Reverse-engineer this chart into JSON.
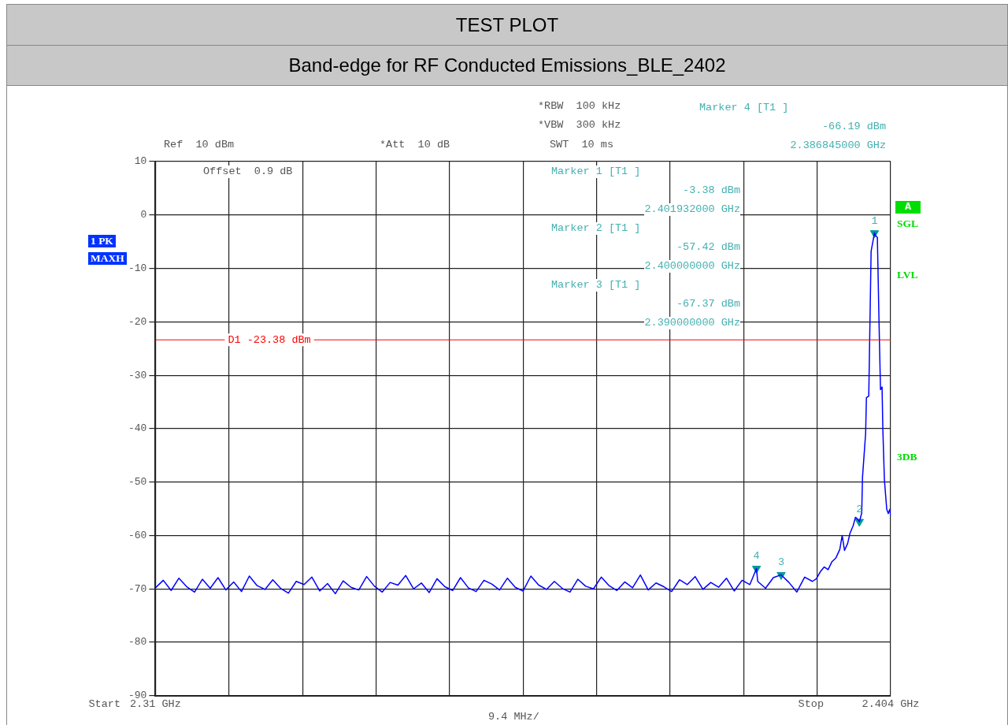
{
  "chart_data": {
    "type": "line",
    "title": "TEST   PLOT",
    "subtitle": "Band-edge for RF Conducted Emissions_BLE_2402",
    "xlim": [
      2.31,
      2.404
    ],
    "xticks": [
      {
        "value": 2.31,
        "label": "2.31 GHz"
      },
      {
        "value": 2.3194,
        "label": null
      },
      {
        "value": 2.3288,
        "label": null
      },
      {
        "value": 2.3382,
        "label": null
      },
      {
        "value": 2.3476,
        "label": null
      },
      {
        "value": 2.357,
        "label": null
      },
      {
        "value": 2.3664,
        "label": null
      },
      {
        "value": 2.3758,
        "label": null
      },
      {
        "value": 2.3852,
        "label": null
      },
      {
        "value": 2.3946,
        "label": null
      },
      {
        "value": 2.404,
        "label": "2.404 GHz"
      }
    ],
    "ylim": [
      -90,
      10
    ],
    "yticks": [
      10,
      0,
      -10,
      -20,
      -30,
      -40,
      -50,
      -60,
      -70,
      -80,
      -90
    ],
    "grid": true,
    "series": [
      {
        "marker": "none",
        "color": "#0000ff",
        "x": [
          2.31,
          2.311,
          2.312,
          2.313,
          2.314,
          2.315,
          2.316,
          2.317,
          2.318,
          2.319,
          2.32,
          2.321,
          2.322,
          2.323,
          2.324,
          2.325,
          2.326,
          2.327,
          2.328,
          2.329,
          2.33,
          2.331,
          2.332,
          2.333,
          2.334,
          2.335,
          2.336,
          2.337,
          2.338,
          2.339,
          2.34,
          2.341,
          2.342,
          2.343,
          2.344,
          2.345,
          2.346,
          2.347,
          2.348,
          2.349,
          2.35,
          2.351,
          2.352,
          2.353,
          2.354,
          2.355,
          2.356,
          2.357,
          2.358,
          2.359,
          2.36,
          2.361,
          2.362,
          2.363,
          2.364,
          2.365,
          2.366,
          2.367,
          2.368,
          2.369,
          2.37,
          2.371,
          2.372,
          2.373,
          2.374,
          2.375,
          2.376,
          2.377,
          2.378,
          2.379,
          2.38,
          2.381,
          2.382,
          2.383,
          2.384,
          2.385,
          2.386,
          2.386845,
          2.387,
          2.388,
          2.389,
          2.39,
          2.391,
          2.392,
          2.393,
          2.394,
          2.3945,
          2.395,
          2.3955,
          2.396,
          2.3965,
          2.397,
          2.3975,
          2.3978,
          2.3981,
          2.3985,
          2.3988,
          2.3992,
          2.3995,
          2.3998,
          2.4,
          2.4003,
          2.4004,
          2.4008,
          2.4009,
          2.4012,
          2.4015,
          2.40185,
          2.401932,
          2.4021,
          2.4023,
          2.4025,
          2.4027,
          2.4029,
          2.403,
          2.4032,
          2.4035,
          2.4037,
          2.4039,
          2.404
        ],
        "values": [
          -69.8,
          -68.4,
          -70.3,
          -68.0,
          -69.6,
          -70.6,
          -68.2,
          -69.9,
          -67.9,
          -70.2,
          -68.7,
          -70.5,
          -67.6,
          -69.4,
          -70.1,
          -68.3,
          -69.9,
          -70.8,
          -68.6,
          -69.2,
          -67.8,
          -70.4,
          -69.0,
          -70.9,
          -68.5,
          -69.7,
          -70.2,
          -67.7,
          -69.5,
          -70.6,
          -68.8,
          -69.3,
          -67.5,
          -70.0,
          -68.9,
          -70.7,
          -68.1,
          -69.6,
          -70.3,
          -67.9,
          -69.8,
          -70.5,
          -68.4,
          -69.1,
          -70.2,
          -68.0,
          -69.7,
          -70.4,
          -67.6,
          -69.3,
          -70.1,
          -68.6,
          -69.9,
          -70.6,
          -68.2,
          -69.5,
          -70.0,
          -67.8,
          -69.4,
          -70.3,
          -68.7,
          -69.8,
          -67.4,
          -70.2,
          -68.9,
          -69.6,
          -70.5,
          -68.3,
          -69.2,
          -67.7,
          -70.1,
          -68.8,
          -69.7,
          -68.0,
          -70.4,
          -68.4,
          -69.2,
          -66.19,
          -68.6,
          -69.9,
          -67.9,
          -67.37,
          -68.8,
          -70.6,
          -67.8,
          -68.6,
          -68.1,
          -66.8,
          -65.9,
          -66.4,
          -64.9,
          -64.2,
          -62.6,
          -60.0,
          -62.8,
          -61.5,
          -59.6,
          -58.2,
          -56.6,
          -57.0,
          -57.42,
          -55.8,
          -49.1,
          -40.9,
          -34.2,
          -33.9,
          -6.8,
          -4.0,
          -3.38,
          -3.9,
          -4.2,
          -19.2,
          -32.7,
          -32.2,
          -40.1,
          -49.6,
          -55.1,
          -55.9,
          -55.1,
          -56.3
        ]
      },
      {
        "type": "scatter",
        "marker": "triangle",
        "color": "#009999",
        "x": [
          2.401932,
          2.4,
          2.39,
          2.386845
        ],
        "values": [
          -3.38,
          -57.42,
          -67.37,
          -66.19
        ]
      }
    ],
    "ref_lines": [
      {
        "axis": "y",
        "value": -23.38,
        "label": "D1 -23.38 dBm",
        "color": "#ff0000"
      }
    ],
    "annotations": [
      "*RBW  100 kHz",
      "*VBW  300 kHz",
      "Ref  10 dBm",
      "*Att  10 dB",
      "SWT  10 ms",
      "Offset  0.9 dB",
      "1 PK",
      "MAXH",
      "A",
      "SGL",
      "LVL",
      "3DB",
      "Marker 4 [T1 ]",
      "-66.19 dBm",
      "2.386845000 GHz",
      "Marker 1 [T1 ]",
      "-3.38 dBm",
      "2.401932000 GHz",
      "Marker 2 [T1 ]",
      "-57.42 dBm",
      "2.400000000 GHz",
      "Marker 3 [T1 ]",
      "-67.37 dBm",
      "2.390000000 GHz",
      "Start",
      "9.4 MHz/",
      "Stop",
      {
        "text": "1",
        "x": 2.401932,
        "y": -3.38
      },
      {
        "text": "2",
        "x": 2.4,
        "y": -57.42
      },
      {
        "text": "3",
        "x": 2.39,
        "y": -67.37
      },
      {
        "text": "4",
        "x": 2.386845,
        "y": -66.19
      }
    ],
    "legend": false
  }
}
